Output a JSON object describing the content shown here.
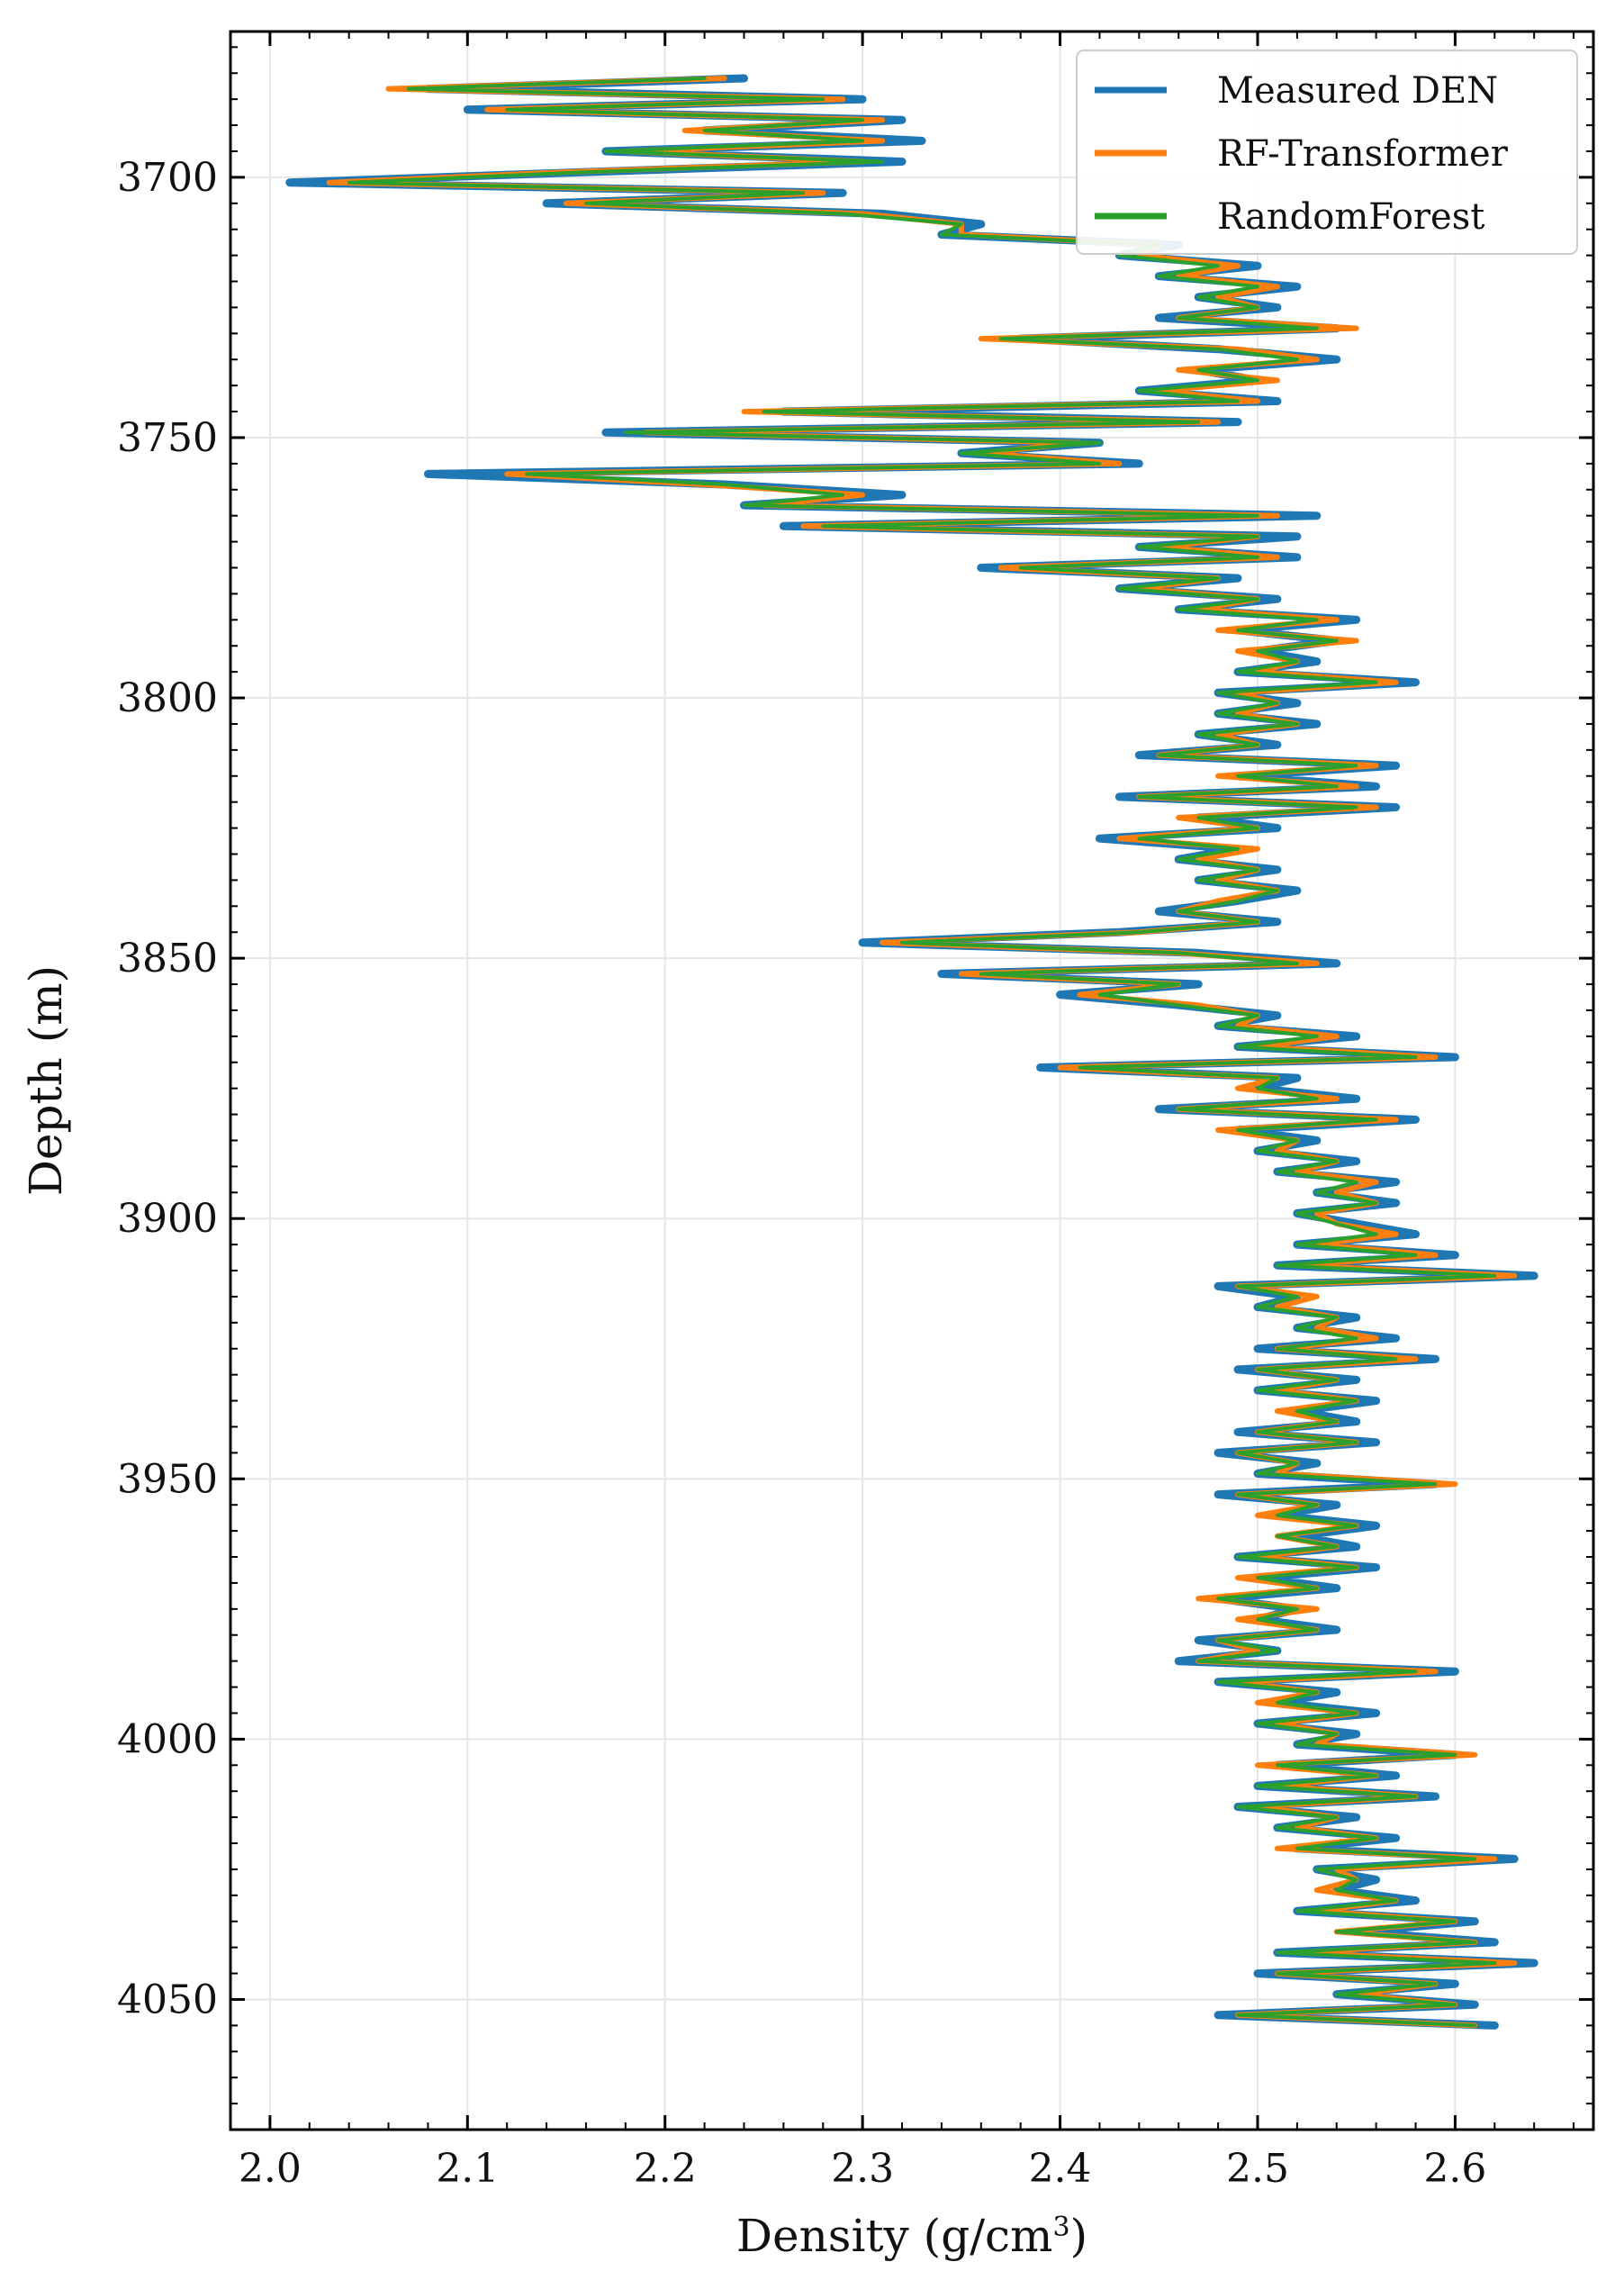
{
  "chart_data": {
    "type": "line",
    "title": "",
    "xlabel": "Density (g/cm",
    "xlabel_sup": "3",
    "xlabel_close": ")",
    "ylabel": "Depth (m)",
    "xlim": [
      1.98,
      2.67
    ],
    "ylim": [
      4075,
      3672
    ],
    "y_inverted": true,
    "x_ticks": [
      2.0,
      2.1,
      2.2,
      2.3,
      2.4,
      2.5,
      2.6
    ],
    "x_tick_labels": [
      "2.0",
      "2.1",
      "2.2",
      "2.3",
      "2.4",
      "2.5",
      "2.6"
    ],
    "y_ticks": [
      3700,
      3750,
      3800,
      3850,
      3900,
      3950,
      4000,
      4050
    ],
    "y_tick_labels": [
      "3700",
      "3750",
      "3800",
      "3850",
      "3900",
      "3950",
      "4000",
      "4050"
    ],
    "grid": true,
    "legend_position": "top-right",
    "colors": {
      "measured": "#1f77b4",
      "rf_transformer": "#ff7f0e",
      "random_forest": "#2ca02c"
    },
    "depth": [
      3681,
      3683,
      3685,
      3687,
      3689,
      3691,
      3693,
      3695,
      3697,
      3699,
      3701,
      3703,
      3705,
      3707,
      3709,
      3711,
      3713,
      3715,
      3717,
      3719,
      3721,
      3723,
      3725,
      3727,
      3729,
      3731,
      3733,
      3735,
      3737,
      3739,
      3741,
      3743,
      3745,
      3747,
      3749,
      3751,
      3753,
      3755,
      3757,
      3759,
      3761,
      3763,
      3765,
      3767,
      3769,
      3771,
      3773,
      3775,
      3777,
      3779,
      3781,
      3783,
      3785,
      3787,
      3789,
      3791,
      3793,
      3795,
      3797,
      3799,
      3801,
      3803,
      3805,
      3807,
      3809,
      3811,
      3813,
      3815,
      3817,
      3819,
      3821,
      3823,
      3825,
      3827,
      3829,
      3831,
      3833,
      3835,
      3837,
      3839,
      3841,
      3843,
      3845,
      3847,
      3849,
      3851,
      3853,
      3855,
      3857,
      3859,
      3861,
      3863,
      3865,
      3867,
      3869,
      3871,
      3873,
      3875,
      3877,
      3879,
      3881,
      3883,
      3885,
      3887,
      3889,
      3891,
      3893,
      3895,
      3897,
      3899,
      3901,
      3903,
      3905,
      3907,
      3909,
      3911,
      3913,
      3915,
      3917,
      3919,
      3921,
      3923,
      3925,
      3927,
      3929,
      3931,
      3933,
      3935,
      3937,
      3939,
      3941,
      3943,
      3945,
      3947,
      3949,
      3951,
      3953,
      3955,
      3957,
      3959,
      3961,
      3963,
      3965,
      3967,
      3969,
      3971,
      3973,
      3975,
      3977,
      3979,
      3981,
      3983,
      3985,
      3987,
      3989,
      3991,
      3993,
      3995,
      3997,
      3999,
      4001,
      4003,
      4005,
      4007,
      4009,
      4011,
      4013,
      4015,
      4017,
      4019,
      4021,
      4023,
      4025,
      4027,
      4029,
      4031,
      4033,
      4035,
      4037,
      4039,
      4041,
      4043,
      4045,
      4047,
      4049,
      4051,
      4053,
      4055
    ],
    "series": [
      {
        "name": "Measured DEN",
        "values": [
          2.24,
          2.08,
          2.3,
          2.1,
          2.32,
          2.22,
          2.33,
          2.17,
          2.32,
          2.16,
          2.01,
          2.29,
          2.14,
          2.31,
          2.36,
          2.34,
          2.46,
          2.43,
          2.5,
          2.45,
          2.52,
          2.47,
          2.51,
          2.45,
          2.54,
          2.38,
          2.48,
          2.54,
          2.47,
          2.5,
          2.44,
          2.51,
          2.26,
          2.49,
          2.17,
          2.42,
          2.35,
          2.44,
          2.08,
          2.23,
          2.32,
          2.24,
          2.53,
          2.26,
          2.52,
          2.44,
          2.52,
          2.36,
          2.49,
          2.43,
          2.51,
          2.46,
          2.55,
          2.49,
          2.54,
          2.5,
          2.53,
          2.49,
          2.58,
          2.48,
          2.52,
          2.48,
          2.53,
          2.47,
          2.51,
          2.44,
          2.57,
          2.49,
          2.56,
          2.43,
          2.57,
          2.47,
          2.51,
          2.42,
          2.49,
          2.46,
          2.51,
          2.47,
          2.52,
          2.49,
          2.45,
          2.51,
          2.43,
          2.3,
          2.47,
          2.54,
          2.34,
          2.47,
          2.4,
          2.46,
          2.51,
          2.48,
          2.55,
          2.49,
          2.6,
          2.39,
          2.52,
          2.5,
          2.55,
          2.45,
          2.58,
          2.49,
          2.53,
          2.5,
          2.55,
          2.51,
          2.57,
          2.53,
          2.57,
          2.52,
          2.55,
          2.58,
          2.52,
          2.6,
          2.51,
          2.64,
          2.48,
          2.52,
          2.5,
          2.55,
          2.52,
          2.57,
          2.5,
          2.59,
          2.49,
          2.55,
          2.5,
          2.56,
          2.52,
          2.55,
          2.49,
          2.56,
          2.48,
          2.53,
          2.5,
          2.59,
          2.48,
          2.54,
          2.51,
          2.56,
          2.52,
          2.55,
          2.49,
          2.56,
          2.5,
          2.54,
          2.48,
          2.52,
          2.5,
          2.54,
          2.47,
          2.51,
          2.46,
          2.6,
          2.48,
          2.54,
          2.51,
          2.56,
          2.5,
          2.55,
          2.52,
          2.6,
          2.51,
          2.57,
          2.5,
          2.59,
          2.49,
          2.55,
          2.51,
          2.57,
          2.52,
          2.63,
          2.53,
          2.56,
          2.54,
          2.58,
          2.52,
          2.61,
          2.55,
          2.62,
          2.51,
          2.64,
          2.5,
          2.6,
          2.54,
          2.61,
          2.48,
          2.62
        ]
      },
      {
        "name": "RF-Transformer",
        "values": [
          2.23,
          2.06,
          2.29,
          2.11,
          2.31,
          2.21,
          2.31,
          2.18,
          2.3,
          2.15,
          2.03,
          2.28,
          2.15,
          2.3,
          2.35,
          2.35,
          2.45,
          2.44,
          2.49,
          2.46,
          2.51,
          2.48,
          2.5,
          2.46,
          2.55,
          2.36,
          2.49,
          2.53,
          2.46,
          2.51,
          2.45,
          2.5,
          2.24,
          2.48,
          2.19,
          2.41,
          2.36,
          2.43,
          2.12,
          2.22,
          2.3,
          2.25,
          2.51,
          2.27,
          2.5,
          2.45,
          2.51,
          2.37,
          2.48,
          2.44,
          2.5,
          2.47,
          2.54,
          2.48,
          2.55,
          2.49,
          2.52,
          2.5,
          2.57,
          2.49,
          2.51,
          2.49,
          2.52,
          2.48,
          2.5,
          2.45,
          2.56,
          2.48,
          2.55,
          2.44,
          2.56,
          2.46,
          2.5,
          2.43,
          2.5,
          2.47,
          2.5,
          2.48,
          2.51,
          2.48,
          2.46,
          2.5,
          2.44,
          2.31,
          2.46,
          2.53,
          2.35,
          2.46,
          2.41,
          2.47,
          2.5,
          2.49,
          2.54,
          2.5,
          2.59,
          2.4,
          2.51,
          2.49,
          2.54,
          2.46,
          2.57,
          2.48,
          2.52,
          2.51,
          2.54,
          2.52,
          2.56,
          2.54,
          2.56,
          2.53,
          2.54,
          2.57,
          2.53,
          2.59,
          2.52,
          2.63,
          2.49,
          2.53,
          2.51,
          2.54,
          2.53,
          2.56,
          2.51,
          2.58,
          2.5,
          2.54,
          2.51,
          2.55,
          2.51,
          2.54,
          2.5,
          2.55,
          2.49,
          2.52,
          2.51,
          2.6,
          2.49,
          2.53,
          2.5,
          2.55,
          2.51,
          2.54,
          2.5,
          2.55,
          2.49,
          2.53,
          2.47,
          2.53,
          2.49,
          2.53,
          2.48,
          2.5,
          2.47,
          2.59,
          2.49,
          2.53,
          2.5,
          2.55,
          2.51,
          2.54,
          2.53,
          2.61,
          2.5,
          2.56,
          2.51,
          2.58,
          2.5,
          2.54,
          2.52,
          2.56,
          2.51,
          2.62,
          2.54,
          2.55,
          2.53,
          2.57,
          2.53,
          2.6,
          2.54,
          2.61,
          2.52,
          2.63,
          2.51,
          2.59,
          2.55,
          2.6,
          2.49,
          2.61
        ]
      },
      {
        "name": "RandomForest",
        "values": [
          2.22,
          2.07,
          2.28,
          2.12,
          2.3,
          2.22,
          2.3,
          2.17,
          2.31,
          2.16,
          2.04,
          2.27,
          2.16,
          2.29,
          2.35,
          2.34,
          2.45,
          2.43,
          2.48,
          2.45,
          2.5,
          2.47,
          2.5,
          2.46,
          2.53,
          2.37,
          2.48,
          2.52,
          2.47,
          2.5,
          2.44,
          2.49,
          2.25,
          2.47,
          2.18,
          2.42,
          2.35,
          2.42,
          2.13,
          2.23,
          2.29,
          2.24,
          2.5,
          2.28,
          2.5,
          2.44,
          2.5,
          2.38,
          2.48,
          2.43,
          2.5,
          2.46,
          2.53,
          2.49,
          2.54,
          2.5,
          2.52,
          2.49,
          2.56,
          2.48,
          2.51,
          2.48,
          2.52,
          2.47,
          2.5,
          2.45,
          2.55,
          2.49,
          2.54,
          2.44,
          2.55,
          2.47,
          2.5,
          2.44,
          2.49,
          2.46,
          2.5,
          2.47,
          2.51,
          2.49,
          2.46,
          2.5,
          2.44,
          2.32,
          2.46,
          2.52,
          2.36,
          2.46,
          2.42,
          2.46,
          2.5,
          2.48,
          2.53,
          2.49,
          2.58,
          2.41,
          2.51,
          2.5,
          2.53,
          2.46,
          2.56,
          2.49,
          2.52,
          2.5,
          2.54,
          2.51,
          2.55,
          2.53,
          2.56,
          2.52,
          2.54,
          2.56,
          2.52,
          2.58,
          2.51,
          2.62,
          2.49,
          2.52,
          2.5,
          2.54,
          2.52,
          2.55,
          2.51,
          2.57,
          2.5,
          2.54,
          2.5,
          2.55,
          2.52,
          2.54,
          2.5,
          2.55,
          2.49,
          2.52,
          2.5,
          2.59,
          2.49,
          2.53,
          2.51,
          2.55,
          2.51,
          2.54,
          2.49,
          2.55,
          2.5,
          2.53,
          2.48,
          2.52,
          2.5,
          2.53,
          2.48,
          2.51,
          2.47,
          2.58,
          2.48,
          2.53,
          2.51,
          2.55,
          2.5,
          2.54,
          2.52,
          2.6,
          2.51,
          2.56,
          2.5,
          2.58,
          2.49,
          2.54,
          2.51,
          2.56,
          2.52,
          2.61,
          2.53,
          2.55,
          2.54,
          2.57,
          2.52,
          2.6,
          2.54,
          2.61,
          2.51,
          2.62,
          2.51,
          2.59,
          2.54,
          2.6,
          2.49,
          2.61
        ]
      }
    ]
  }
}
